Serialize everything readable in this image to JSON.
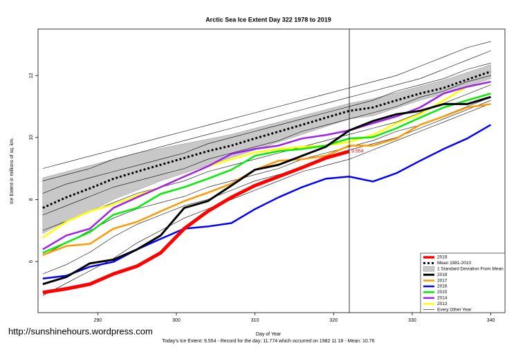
{
  "chart_data": {
    "type": "line",
    "title": "Arctic Sea Ice Extent Day 322 1978 to 2019",
    "x_label": "Day of Year",
    "y_label": "Ice Extent in millions of sq. km.",
    "footer": "Today's Ice Extent: 9.554  - Record for the day: 11.774 which occurred on 1982 11 18  - Mean: 10.76",
    "watermark": "http://sunshinehours.wordpress.com",
    "xlim": [
      282.4,
      341.8
    ],
    "xticks": [
      290,
      300,
      310,
      320,
      330,
      340
    ],
    "ylim": [
      4.35,
      13.5
    ],
    "yticks": [
      6,
      8,
      10,
      12
    ],
    "vline": 322,
    "x": [
      283,
      286,
      289,
      292,
      295,
      298,
      301,
      304,
      307,
      310,
      313,
      316,
      319,
      322,
      325,
      328,
      331,
      334,
      337,
      340
    ],
    "other_years": {
      "name": "Every Other Year",
      "color": "#000000",
      "lines": [
        [
          9.0,
          9.2,
          9.4,
          9.6,
          9.8,
          10.0,
          10.2,
          10.4,
          10.6,
          10.8,
          11.0,
          11.2,
          11.4,
          11.6,
          11.8,
          12.0,
          12.3,
          12.6,
          12.9,
          13.1
        ],
        [
          8.6,
          8.8,
          9.0,
          9.3,
          9.5,
          9.7,
          9.9,
          10.1,
          10.3,
          10.5,
          10.7,
          10.9,
          11.1,
          11.3,
          11.5,
          11.7,
          11.9,
          12.2,
          12.5,
          12.8
        ],
        [
          8.2,
          8.5,
          8.7,
          8.9,
          9.1,
          9.3,
          9.5,
          9.8,
          10.0,
          10.2,
          10.4,
          10.6,
          10.8,
          11.0,
          11.2,
          11.5,
          11.7,
          11.9,
          12.2,
          12.4
        ],
        [
          7.5,
          7.8,
          8.1,
          8.4,
          8.6,
          8.8,
          9.0,
          9.3,
          9.5,
          9.7,
          9.9,
          10.2,
          10.4,
          10.6,
          10.8,
          11.0,
          11.3,
          11.5,
          11.8,
          12.0
        ],
        [
          7.0,
          7.3,
          7.6,
          7.9,
          8.2,
          8.4,
          8.6,
          8.9,
          9.1,
          9.3,
          9.5,
          9.7,
          9.9,
          10.1,
          10.3,
          10.5,
          10.8,
          11.1,
          11.4,
          11.7
        ],
        [
          6.2,
          6.6,
          7.0,
          7.4,
          7.7,
          7.9,
          8.1,
          8.4,
          8.6,
          8.8,
          9.0,
          9.3,
          9.5,
          9.7,
          9.9,
          10.2,
          10.4,
          10.7,
          11.0,
          11.3
        ],
        [
          5.6,
          5.9,
          6.3,
          6.8,
          7.2,
          7.5,
          7.8,
          8.0,
          8.3,
          8.6,
          8.8,
          9.0,
          9.3,
          9.6,
          9.8,
          10.0,
          10.3,
          10.6,
          10.9,
          11.2
        ],
        [
          4.9,
          5.3,
          5.7,
          6.1,
          6.6,
          7.0,
          7.4,
          7.7,
          8.0,
          8.3,
          8.6,
          8.9,
          9.1,
          9.3,
          9.6,
          9.9,
          10.2,
          10.5,
          10.8,
          11.1
        ]
      ]
    },
    "band": {
      "name": "1 Standard Deviation From Mean",
      "color": "#c8c8c8",
      "upper": [
        8.7,
        8.9,
        9.1,
        9.3,
        9.5,
        9.65,
        9.8,
        9.95,
        10.1,
        10.3,
        10.5,
        10.7,
        10.9,
        11.1,
        11.25,
        11.45,
        11.65,
        11.85,
        12.1,
        12.35
      ],
      "lower": [
        6.9,
        7.3,
        7.6,
        8.0,
        8.3,
        8.6,
        8.85,
        9.1,
        9.35,
        9.6,
        9.85,
        10.1,
        10.35,
        10.6,
        10.7,
        10.95,
        11.2,
        11.4,
        11.65,
        11.9
      ]
    },
    "series": [
      {
        "name": "2019",
        "color": "#ff0000",
        "width": 5,
        "values": [
          5.0,
          5.12,
          5.27,
          5.6,
          5.85,
          6.28,
          7.06,
          7.62,
          8.07,
          8.45,
          8.74,
          9.03,
          9.34,
          9.554,
          null,
          null,
          null,
          null,
          null,
          null
        ]
      },
      {
        "name": "Mean 1981-2010",
        "color": "#000000",
        "width": 3,
        "dash": "3,3",
        "values": [
          7.73,
          8.07,
          8.36,
          8.67,
          8.9,
          9.12,
          9.34,
          9.56,
          9.74,
          9.97,
          10.19,
          10.41,
          10.64,
          10.86,
          10.97,
          11.2,
          11.42,
          11.6,
          11.87,
          12.13
        ]
      },
      {
        "name": "2018",
        "color": "#000000",
        "width": 3,
        "values": [
          5.27,
          5.5,
          5.94,
          6.06,
          6.39,
          6.84,
          7.73,
          7.95,
          8.45,
          8.96,
          9.12,
          9.41,
          9.7,
          10.23,
          10.53,
          10.75,
          10.86,
          11.08,
          11.08,
          11.31
        ]
      },
      {
        "name": "2017",
        "color": "#ff9900",
        "width": 2.5,
        "values": [
          6.21,
          6.5,
          6.57,
          7.06,
          7.28,
          7.62,
          7.95,
          8.22,
          8.51,
          8.96,
          9.25,
          9.3,
          9.41,
          9.74,
          9.74,
          9.97,
          10.41,
          10.68,
          10.97,
          11.08
        ]
      },
      {
        "name": "2016",
        "color": "#0000ff",
        "width": 2.5,
        "values": [
          5.45,
          5.54,
          5.83,
          5.99,
          6.39,
          6.73,
          7.06,
          7.13,
          7.24,
          7.69,
          8.07,
          8.4,
          8.67,
          8.74,
          8.58,
          8.85,
          9.25,
          9.63,
          9.97,
          10.41
        ]
      },
      {
        "name": "2015",
        "color": "#00ee00",
        "width": 2.5,
        "values": [
          6.28,
          6.61,
          6.95,
          7.51,
          7.73,
          8.18,
          8.4,
          8.67,
          8.96,
          9.41,
          9.56,
          9.63,
          9.74,
          9.97,
          10.01,
          10.3,
          10.64,
          10.97,
          11.2,
          11.42
        ]
      },
      {
        "name": "2014",
        "color": "#a020f0",
        "width": 2.5,
        "values": [
          6.39,
          6.84,
          7.06,
          7.73,
          8.07,
          8.4,
          8.74,
          9.07,
          9.47,
          9.63,
          9.74,
          9.97,
          10.08,
          10.23,
          10.46,
          10.68,
          10.97,
          11.42,
          11.64,
          11.8
        ]
      },
      {
        "name": "2013",
        "color": "#ffff00",
        "width": 2.5,
        "values": [
          6.77,
          7.28,
          7.62,
          7.84,
          8.13,
          8.4,
          8.74,
          9.07,
          9.3,
          9.52,
          9.63,
          9.7,
          9.74,
          9.86,
          10.08,
          10.46,
          10.75,
          11.2,
          11.64,
          11.8
        ]
      }
    ]
  }
}
